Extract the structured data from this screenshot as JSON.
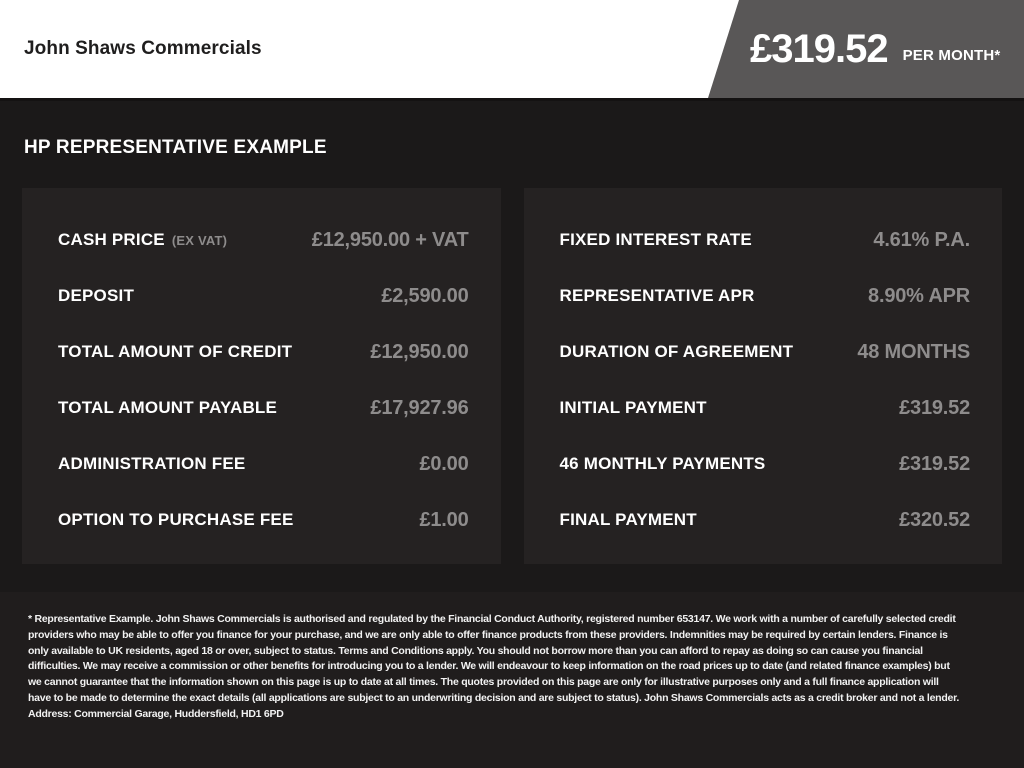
{
  "header": {
    "dealer_name": "John Shaws Commercials",
    "price_flag": {
      "amount": "£319.52",
      "per": "PER MONTH*"
    }
  },
  "main": {
    "title": "HP REPRESENTATIVE EXAMPLE",
    "left_panel": {
      "rows": [
        {
          "label": "CASH PRICE",
          "note": "(EX VAT)",
          "value": "£12,950.00 + VAT"
        },
        {
          "label": "DEPOSIT",
          "value": "£2,590.00"
        },
        {
          "label": "TOTAL AMOUNT OF CREDIT",
          "value": "£12,950.00"
        },
        {
          "label": "TOTAL AMOUNT PAYABLE",
          "value": "£17,927.96"
        },
        {
          "label": "ADMINISTRATION FEE",
          "value": "£0.00"
        },
        {
          "label": "OPTION TO PURCHASE FEE",
          "value": "£1.00"
        }
      ]
    },
    "right_panel": {
      "rows": [
        {
          "label": "FIXED INTEREST RATE",
          "value": "4.61% P.A."
        },
        {
          "label": "REPRESENTATIVE APR",
          "value": "8.90% APR"
        },
        {
          "label": "DURATION OF AGREEMENT",
          "value": "48 MONTHS"
        },
        {
          "label": "INITIAL PAYMENT",
          "value": "£319.52"
        },
        {
          "label": "46 MONTHLY PAYMENTS",
          "value": "£319.52"
        },
        {
          "label": "FINAL PAYMENT",
          "value": "£320.52"
        }
      ]
    }
  },
  "footer": {
    "disclaimer": "* Representative Example. John Shaws Commercials is authorised and regulated by the Financial Conduct Authority, registered number 653147. We work with a number of carefully selected credit providers who may be able to offer you finance for your purchase, and we are only able to offer finance products from these providers. Indemnities may be required by certain lenders. Finance is only available to UK residents, aged 18 or over, subject to status. Terms and Conditions apply. You should not borrow more than you can afford to repay as doing so can cause you financial difficulties. We may receive a commission or other benefits for introducing you to a lender. We will endeavour to keep information on the road prices up to date (and related finance examples) but we cannot guarantee that the information shown on this page is up to date at all times. The quotes provided on this page are only for illustrative purposes only and a full finance application will have to be made to determine the exact details (all applications are subject to an underwriting decision and are subject to status). John Shaws Commercials acts as a credit broker and not a lender. Address: Commercial Garage, Huddersfield, HD1 6PD"
  },
  "colors": {
    "header_bg": "#ffffff",
    "flag_bg": "#595757",
    "page_bg": "#1b1919",
    "panel_bg": "#252222",
    "footer_bg": "#201d1d",
    "label_text": "#ffffff",
    "value_text": "#8e8c8c"
  }
}
